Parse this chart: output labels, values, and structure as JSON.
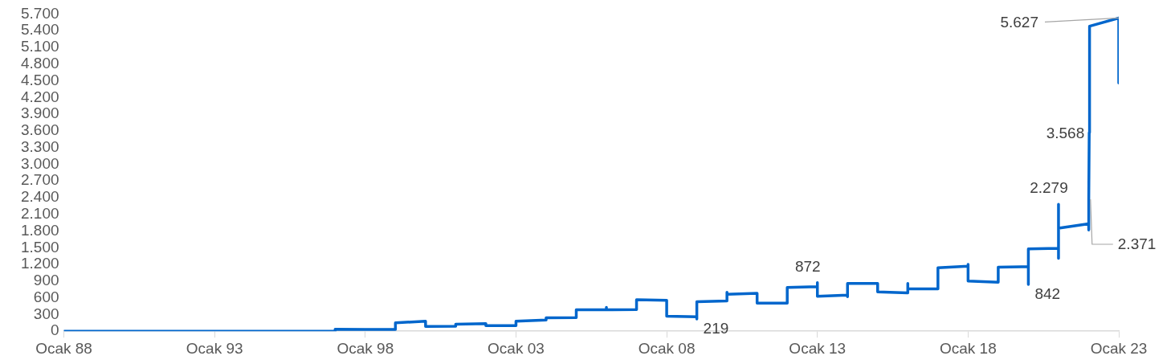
{
  "chart_data": {
    "type": "line",
    "x": [
      "1988-01",
      "1997-01",
      "1997-01",
      "1998-01",
      "1999-01",
      "1999-01",
      "2000-01",
      "2000-01",
      "2001-01",
      "2001-01",
      "2002-01",
      "2002-01",
      "2003-01",
      "2003-01",
      "2004-01",
      "2004-01",
      "2005-01",
      "2005-01",
      "2006-01",
      "2006-01",
      "2006-01",
      "2007-01",
      "2007-01",
      "2008-01",
      "2008-01",
      "2009-01",
      "2009-01",
      "2009-01",
      "2010-01",
      "2010-01",
      "2010-01",
      "2011-01",
      "2011-01",
      "2012-01",
      "2012-01",
      "2013-01",
      "2013-01",
      "2013-01",
      "2014-01",
      "2014-01",
      "2014-01",
      "2015-01",
      "2015-01",
      "2016-01",
      "2016-01",
      "2016-01",
      "2017-01",
      "2017-01",
      "2018-01",
      "2018-01",
      "2018-01",
      "2019-01",
      "2019-01",
      "2020-01",
      "2020-01",
      "2020-01",
      "2021-01",
      "2021-01",
      "2021-01",
      "2021-01",
      "2022-01",
      "2022-01-01",
      "2022-01-04",
      "2022-01-08",
      "2022-01-12",
      "2023-01",
      "2023-01"
    ],
    "series": [
      {
        "color": "#0066cc",
        "values": [
          0,
          0,
          35,
          30,
          30,
          150,
          180,
          85,
          90,
          125,
          135,
          100,
          100,
          180,
          200,
          240,
          245,
          385,
          390,
          430,
          385,
          390,
          565,
          555,
          270,
          260,
          219,
          530,
          545,
          700,
          665,
          680,
          504,
          504,
          785,
          800,
          872,
          627,
          650,
          620,
          860,
          860,
          705,
          690,
          860,
          760,
          760,
          1140,
          1170,
          1200,
          900,
          880,
          1150,
          1160,
          842,
          1480,
          1490,
          1310,
          2279,
          1850,
          1930,
          1820,
          2371,
          3568,
          5480,
          5627,
          4460
        ],
        "value_labels": [
          null,
          null,
          null,
          null,
          null,
          null,
          null,
          null,
          null,
          null,
          null,
          null,
          null,
          null,
          null,
          null,
          null,
          null,
          null,
          null,
          null,
          null,
          null,
          null,
          null,
          null,
          "219",
          null,
          null,
          null,
          null,
          null,
          null,
          null,
          null,
          null,
          "872",
          null,
          null,
          null,
          null,
          null,
          null,
          null,
          null,
          null,
          null,
          null,
          null,
          null,
          null,
          null,
          null,
          null,
          "842",
          null,
          null,
          null,
          "2.279",
          null,
          null,
          null,
          "2.371",
          "3.568",
          null,
          "5.627",
          null
        ]
      }
    ],
    "xlim": [
      "1988-01",
      "2023-01"
    ],
    "xticks": [
      {
        "value": "1988-01",
        "label": "Ocak 88"
      },
      {
        "value": "1993-01",
        "label": "Ocak 93"
      },
      {
        "value": "1998-01",
        "label": "Ocak 98"
      },
      {
        "value": "2003-01",
        "label": "Ocak 03"
      },
      {
        "value": "2008-01",
        "label": "Ocak 08"
      },
      {
        "value": "2013-01",
        "label": "Ocak 13"
      },
      {
        "value": "2018-01",
        "label": "Ocak 18"
      },
      {
        "value": "2023-01",
        "label": "Ocak 23"
      }
    ],
    "ylim": [
      0,
      5700
    ],
    "yticks": [
      0,
      {
        "value": 300,
        "label": "300"
      },
      {
        "value": 600,
        "label": "600"
      },
      {
        "value": 900,
        "label": "900"
      },
      {
        "value": 1200,
        "label": "1.200"
      },
      {
        "value": 1500,
        "label": "1.500"
      },
      {
        "value": 1800,
        "label": "1.800"
      },
      {
        "value": 2100,
        "label": "2.100"
      },
      {
        "value": 2400,
        "label": "2.400"
      },
      {
        "value": 2700,
        "label": "2.700"
      },
      {
        "value": 3000,
        "label": "3.000"
      },
      {
        "value": 3300,
        "label": "3.300"
      },
      {
        "value": 3600,
        "label": "3.600"
      },
      {
        "value": 3900,
        "label": "3.900"
      },
      {
        "value": 4200,
        "label": "4.200"
      },
      {
        "value": 4500,
        "label": "4.500"
      },
      {
        "value": 4800,
        "label": "4.800"
      },
      {
        "value": 5100,
        "label": "5.100"
      },
      {
        "value": 5400,
        "label": "5.400"
      },
      {
        "value": 5700,
        "label": "5.700"
      }
    ],
    "grid": false,
    "legend": false,
    "marker": "none",
    "line_style": "solid"
  }
}
